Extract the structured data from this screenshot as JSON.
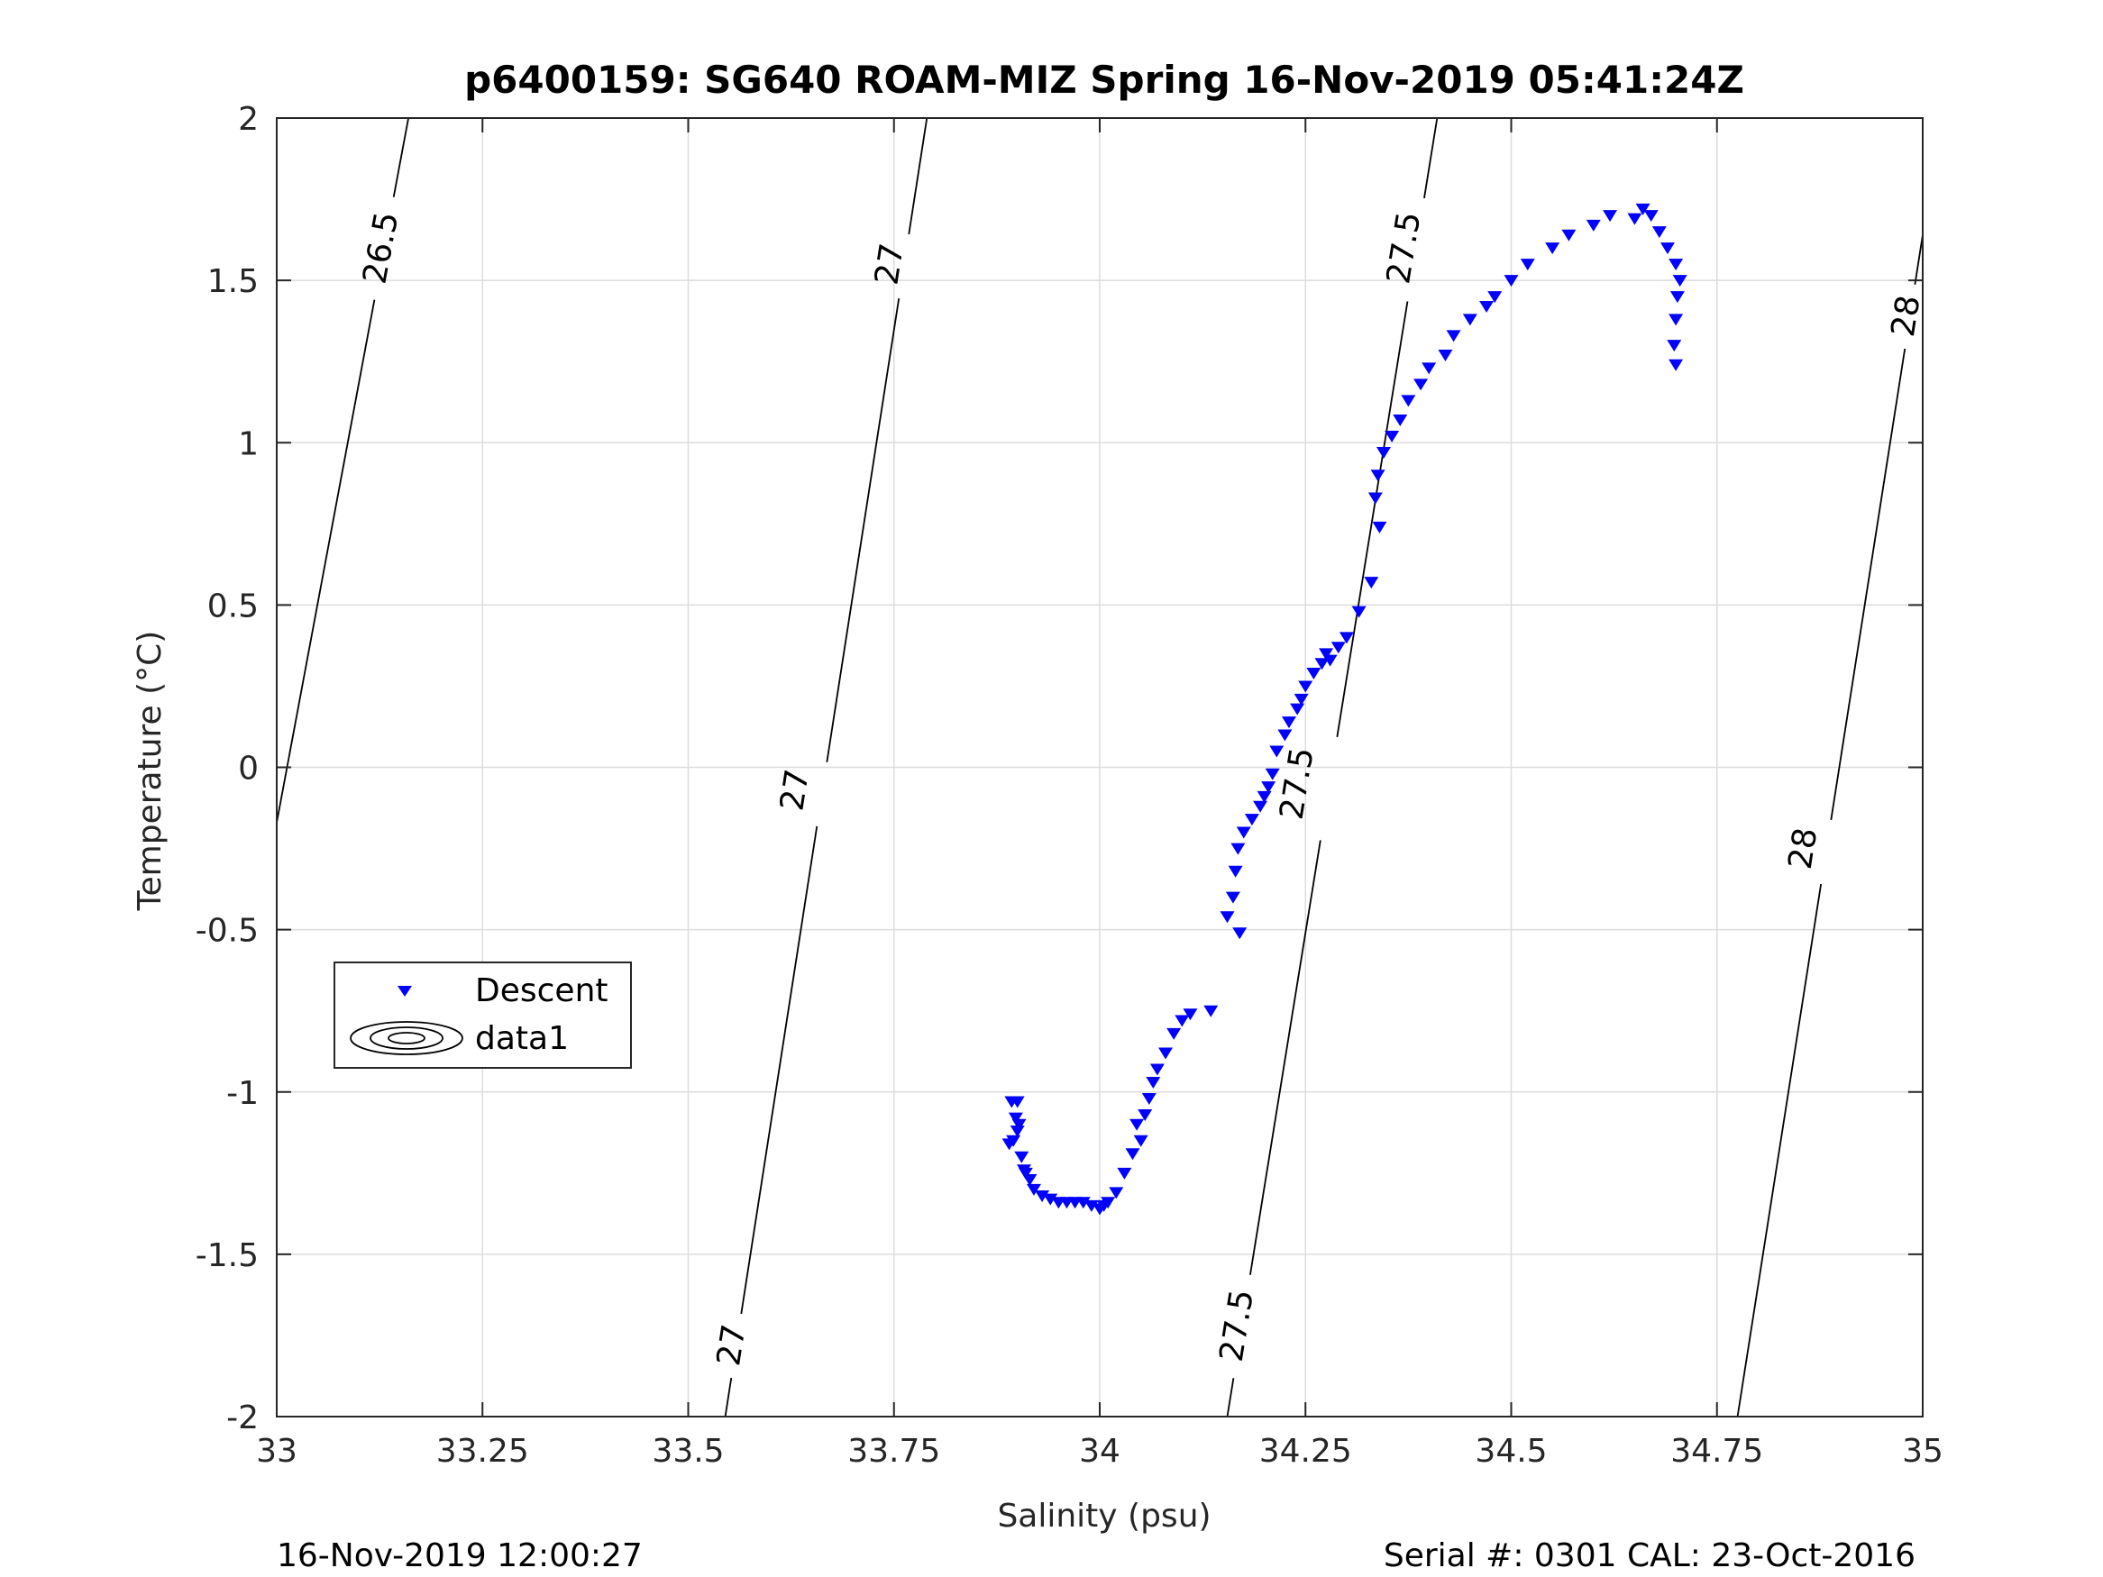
{
  "chart_data": {
    "type": "scatter",
    "title": "p6400159: SG640 ROAM-MIZ Spring 16-Nov-2019 05:41:24Z",
    "xlabel": "Salinity (psu)",
    "ylabel": "Temperature (°C)",
    "xlim": [
      33,
      35
    ],
    "ylim": [
      -2,
      2
    ],
    "xticks": [
      33,
      33.25,
      33.5,
      33.75,
      34,
      34.25,
      34.5,
      34.75,
      35
    ],
    "xtick_labels": [
      "33",
      "33.25",
      "33.5",
      "33.75",
      "34",
      "34.25",
      "34.5",
      "34.75",
      "35"
    ],
    "yticks": [
      -2,
      -1.5,
      -1,
      -0.5,
      0,
      0.5,
      1,
      1.5,
      2
    ],
    "ytick_labels": [
      "-2",
      "-1.5",
      "-1",
      "-0.5",
      "0",
      "0.5",
      "1",
      "1.5",
      "2"
    ],
    "grid": true,
    "legend_position": "lower-left",
    "legend": [
      "Descent",
      "data1"
    ],
    "marker_color": "#0000ff",
    "contour_color": "#000000",
    "series": [
      {
        "name": "Descent",
        "marker": "triangle-down",
        "x": [
          33.893,
          33.898,
          33.9,
          33.902,
          33.895,
          33.9,
          33.905,
          33.89,
          33.908,
          33.91,
          33.915,
          33.92,
          33.93,
          33.94,
          33.95,
          33.96,
          33.97,
          33.98,
          33.99,
          34.0,
          34.005,
          34.01,
          34.02,
          34.03,
          34.04,
          34.045,
          34.05,
          34.055,
          34.06,
          34.065,
          34.07,
          34.08,
          34.09,
          34.1,
          34.11,
          34.135,
          34.155,
          34.17,
          34.162,
          34.165,
          34.168,
          34.175,
          34.185,
          34.195,
          34.2,
          34.205,
          34.21,
          34.215,
          34.225,
          34.23,
          34.24,
          34.245,
          34.25,
          34.26,
          34.27,
          34.275,
          34.28,
          34.29,
          34.3,
          34.315,
          34.33,
          34.34,
          34.335,
          34.338,
          34.345,
          34.355,
          34.365,
          34.375,
          34.39,
          34.4,
          34.42,
          34.43,
          34.45,
          34.47,
          34.48,
          34.5,
          34.52,
          34.55,
          34.57,
          34.6,
          34.62,
          34.65,
          34.66,
          34.67,
          34.68,
          34.69,
          34.7,
          34.705,
          34.702,
          34.7,
          34.698,
          34.7
        ],
        "y": [
          -1.03,
          -1.08,
          -1.03,
          -1.1,
          -1.15,
          -1.12,
          -1.2,
          -1.16,
          -1.24,
          -1.25,
          -1.27,
          -1.3,
          -1.32,
          -1.33,
          -1.34,
          -1.34,
          -1.34,
          -1.34,
          -1.35,
          -1.36,
          -1.35,
          -1.34,
          -1.31,
          -1.25,
          -1.19,
          -1.1,
          -1.15,
          -1.07,
          -1.02,
          -0.97,
          -0.93,
          -0.88,
          -0.82,
          -0.78,
          -0.76,
          -0.75,
          -0.46,
          -0.51,
          -0.4,
          -0.32,
          -0.25,
          -0.2,
          -0.16,
          -0.12,
          -0.09,
          -0.06,
          -0.02,
          0.05,
          0.1,
          0.14,
          0.18,
          0.21,
          0.25,
          0.29,
          0.32,
          0.35,
          0.33,
          0.37,
          0.4,
          0.48,
          0.57,
          0.74,
          0.83,
          0.9,
          0.97,
          1.02,
          1.07,
          1.13,
          1.18,
          1.23,
          1.27,
          1.33,
          1.38,
          1.42,
          1.45,
          1.5,
          1.55,
          1.6,
          1.64,
          1.67,
          1.7,
          1.69,
          1.72,
          1.7,
          1.65,
          1.6,
          1.55,
          1.5,
          1.45,
          1.38,
          1.3,
          1.24
        ]
      },
      {
        "name": "data1",
        "type": "contour",
        "contour_levels": [
          26.5,
          27,
          27.5,
          28
        ],
        "lines": [
          {
            "level": 26.5,
            "x": [
              33.0,
              33.16
            ],
            "y": [
              -0.17,
              2.0
            ],
            "labels": [
              {
                "text": "26.5",
                "x": 33.127,
                "y": 1.6
              }
            ]
          },
          {
            "level": 27,
            "x": [
              33.545,
              33.79
            ],
            "y": [
              -2.0,
              2.0
            ],
            "labels": [
              {
                "text": "27",
                "x": 33.553,
                "y": -1.78
              },
              {
                "text": "27",
                "x": 33.63,
                "y": -0.07
              },
              {
                "text": "27",
                "x": 33.745,
                "y": 1.55
              }
            ]
          },
          {
            "level": 27.5,
            "x": [
              34.155,
              34.41
            ],
            "y": [
              -2.0,
              2.0
            ],
            "labels": [
              {
                "text": "27.5",
                "x": 34.167,
                "y": -1.72
              },
              {
                "text": "27.5",
                "x": 34.24,
                "y": -0.05
              },
              {
                "text": "27.5",
                "x": 34.37,
                "y": 1.6
              }
            ]
          },
          {
            "level": 28,
            "x": [
              34.775,
              35.0
            ],
            "y": [
              -2.0,
              1.64
            ],
            "labels": [
              {
                "text": "28",
                "x": 34.855,
                "y": -0.25
              },
              {
                "text": "28",
                "x": 34.98,
                "y": 1.39
              }
            ]
          }
        ]
      }
    ]
  },
  "footer": {
    "left": "16-Nov-2019 12:00:27",
    "right": "Serial #: 0301  CAL: 23-Oct-2016"
  }
}
